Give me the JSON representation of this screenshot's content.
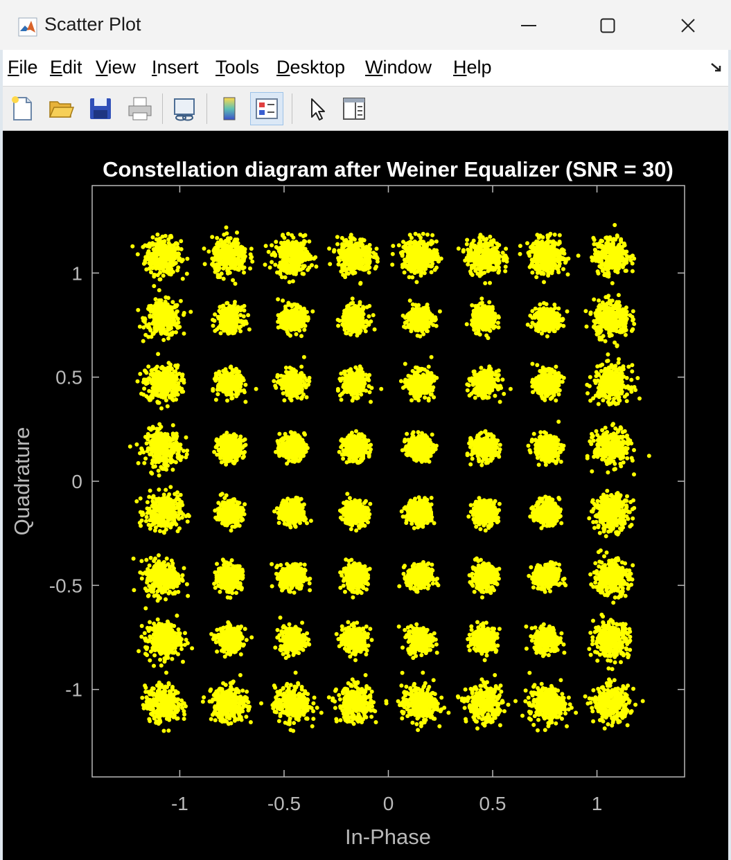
{
  "window": {
    "title": "Scatter Plot",
    "minimize_icon": "minimize-icon",
    "maximize_icon": "maximize-icon",
    "close_icon": "close-icon"
  },
  "menu": {
    "items": [
      {
        "first": "F",
        "rest": "ile"
      },
      {
        "first": "E",
        "rest": "dit"
      },
      {
        "first": "V",
        "rest": "iew"
      },
      {
        "first": "I",
        "rest": "nsert"
      },
      {
        "first": "T",
        "rest": "ools"
      },
      {
        "first": "D",
        "rest": "esktop"
      },
      {
        "first": "W",
        "rest": "indow"
      },
      {
        "first": "H",
        "rest": "elp"
      }
    ]
  },
  "toolbar": {
    "icons": [
      "new-figure-icon",
      "open-file-icon",
      "save-icon",
      "print-icon",
      "link-plot-icon",
      "colorbar-icon",
      "legend-icon",
      "pointer-icon",
      "property-editor-icon"
    ],
    "active": "legend-icon"
  },
  "colors": {
    "marker": "#ffff00",
    "axes_bg": "#000000",
    "axis_text": "#b9b9b9",
    "title_text": "#ffffff"
  },
  "chart_data": {
    "type": "scatter",
    "title": "Constellation diagram after Weiner Equalizer (SNR = 30)",
    "xlabel": "In-Phase",
    "ylabel": "Quadrature",
    "xlim": [
      -1.42,
      1.42
    ],
    "ylim": [
      -1.42,
      1.42
    ],
    "xticks": [
      -1,
      -0.5,
      0,
      0.5,
      1
    ],
    "xtick_labels": [
      "-1",
      "-0.5",
      "0",
      "0.5",
      "1"
    ],
    "yticks": [
      1,
      0.5,
      0,
      -0.5,
      -1
    ],
    "ytick_labels": [
      "1",
      "0.5",
      "0",
      "-0.5",
      "-1"
    ],
    "grid": false,
    "legend": "none",
    "constellation": "64-QAM",
    "cluster_centers_x": [
      -1.08,
      -0.76,
      -0.46,
      -0.16,
      0.15,
      0.46,
      0.76,
      1.07
    ],
    "cluster_centers_y": [
      1.08,
      0.78,
      0.47,
      0.16,
      -0.15,
      -0.46,
      -0.76,
      -1.07
    ],
    "cluster_spread_outer": 0.1,
    "cluster_spread_inner": 0.07,
    "points_per_cluster": 320
  }
}
